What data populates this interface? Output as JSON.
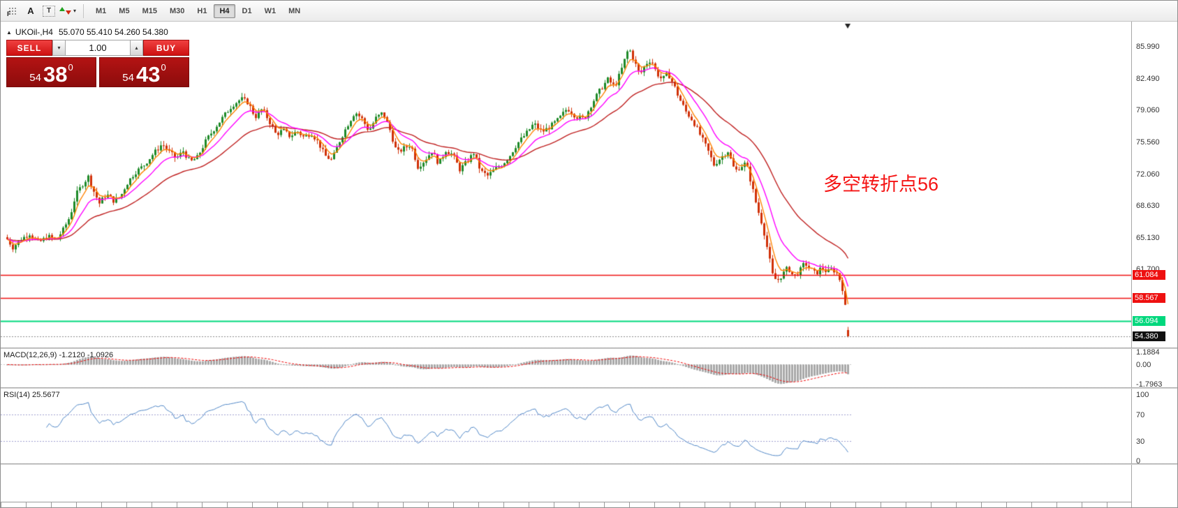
{
  "colors": {
    "up_candle": "#1e8a28",
    "down_candle": "#d03008",
    "ma_fast": "#ff8400",
    "ma_mid": "#ff00ff",
    "ma_slow": "#bf1f1f",
    "macd_hist": "#a8a8a8",
    "macd_signal": "#ee0000",
    "rsi_line": "#4f86c6",
    "rsi_level": "#9f9fd0",
    "level_red": "#ee1010",
    "level_green": "#00d87d",
    "current_badge": "#111111",
    "current_line": "#8a8a8a",
    "annotation_red": "#f51414"
  },
  "toolbar": {
    "icon_f": "F",
    "icon_a": "A",
    "icon_t": "T",
    "dropdown_caret": "▾",
    "timeframes": [
      "M1",
      "M5",
      "M15",
      "M30",
      "H1",
      "H4",
      "D1",
      "W1",
      "MN"
    ],
    "active_timeframe": "H4"
  },
  "header": {
    "collapse": "▲",
    "symbol": "UKOil-,H4",
    "ohlc": "55.070 55.410 54.260 54.380"
  },
  "trade_panel": {
    "sell_label": "SELL",
    "buy_label": "BUY",
    "volume": "1.00",
    "stepper_down": "▾",
    "stepper_up": "▴",
    "bid_small": "54",
    "bid_big": "38",
    "bid_sup": "0",
    "ask_small": "54",
    "ask_big": "43",
    "ask_sup": "0"
  },
  "annotation": {
    "text": "多空转折点56"
  },
  "price_axis": {
    "labels": [
      {
        "text": "85.990",
        "price": 85.99
      },
      {
        "text": "82.490",
        "price": 82.49
      },
      {
        "text": "79.060",
        "price": 79.06
      },
      {
        "text": "75.560",
        "price": 75.56
      },
      {
        "text": "72.060",
        "price": 72.06
      },
      {
        "text": "68.630",
        "price": 68.63
      },
      {
        "text": "65.130",
        "price": 65.13
      },
      {
        "text": "61.700",
        "price": 61.7
      }
    ]
  },
  "levels": [
    {
      "text": "61.084",
      "price": 61.084,
      "style": "red"
    },
    {
      "text": "58.567",
      "price": 58.567,
      "style": "red"
    },
    {
      "text": "56.094",
      "price": 56.094,
      "style": "green"
    },
    {
      "text": "54.380",
      "price": 54.38,
      "style": "current"
    }
  ],
  "macd_panel": {
    "label": "MACD(12,26,9) -1.2120 -1.0926",
    "axis": [
      {
        "text": "1.1884",
        "value": 1.1884
      },
      {
        "text": "0.00",
        "value": 0
      },
      {
        "text": "-1.7963",
        "value": -1.7963
      }
    ]
  },
  "rsi_panel": {
    "label": "RSI(14) 25.5677",
    "axis": [
      {
        "text": "100",
        "value": 100
      },
      {
        "text": "70",
        "value": 70
      },
      {
        "text": "30",
        "value": 30
      },
      {
        "text": "0",
        "value": 0
      }
    ],
    "levels": [
      70,
      30
    ]
  },
  "chart_data": {
    "type": "candlestick",
    "symbol": "UKOil-",
    "timeframe": "H4",
    "last_bar": {
      "open": 55.07,
      "high": 55.41,
      "low": 54.26,
      "close": 54.38
    },
    "current_price": 54.38,
    "price_range_visible": [
      53.2,
      88.7
    ],
    "axis_ticks": [
      85.99,
      82.49,
      79.06,
      75.56,
      72.06,
      68.63,
      65.13,
      61.7
    ],
    "horizontal_levels": [
      61.084,
      58.567,
      56.094
    ],
    "moving_averages": [
      {
        "name": "fast",
        "period": 5,
        "color": "#ff8400"
      },
      {
        "name": "medium",
        "period": 13,
        "color": "#ff00ff"
      },
      {
        "name": "slow",
        "period": 34,
        "color": "#bf1f1f"
      }
    ],
    "macd": {
      "fast": 12,
      "slow": 26,
      "signal": 9,
      "main_value": -1.212,
      "signal_value": -1.0926,
      "axis_max": 1.1884,
      "axis_min": -1.7963
    },
    "rsi": {
      "period": 14,
      "value": 25.5677,
      "levels": [
        70,
        30
      ],
      "axis_range": [
        0,
        100
      ]
    },
    "price_path": [
      [
        8,
        65.2
      ],
      [
        18,
        64.1
      ],
      [
        30,
        65.0
      ],
      [
        42,
        65.6
      ],
      [
        55,
        64.6
      ],
      [
        68,
        65.3
      ],
      [
        80,
        64.9
      ],
      [
        90,
        66.0
      ],
      [
        100,
        67.5
      ],
      [
        108,
        69.8
      ],
      [
        118,
        71.0
      ],
      [
        126,
        71.8
      ],
      [
        134,
        70.2
      ],
      [
        142,
        68.9
      ],
      [
        152,
        69.9
      ],
      [
        162,
        69.2
      ],
      [
        172,
        69.6
      ],
      [
        180,
        70.9
      ],
      [
        192,
        72.2
      ],
      [
        205,
        73.0
      ],
      [
        218,
        74.2
      ],
      [
        232,
        75.4
      ],
      [
        242,
        74.5
      ],
      [
        252,
        73.8
      ],
      [
        262,
        74.6
      ],
      [
        272,
        73.4
      ],
      [
        282,
        73.9
      ],
      [
        295,
        75.8
      ],
      [
        308,
        77.2
      ],
      [
        320,
        78.4
      ],
      [
        332,
        79.6
      ],
      [
        345,
        80.3
      ],
      [
        355,
        79.9
      ],
      [
        365,
        78.3
      ],
      [
        375,
        79.2
      ],
      [
        385,
        77.9
      ],
      [
        395,
        76.4
      ],
      [
        405,
        76.9
      ],
      [
        415,
        76.2
      ],
      [
        425,
        76.8
      ],
      [
        435,
        76.1
      ],
      [
        445,
        76.6
      ],
      [
        455,
        75.6
      ],
      [
        465,
        74.1
      ],
      [
        475,
        73.6
      ],
      [
        487,
        75.9
      ],
      [
        497,
        77.4
      ],
      [
        508,
        78.9
      ],
      [
        518,
        78.1
      ],
      [
        528,
        76.8
      ],
      [
        538,
        78.2
      ],
      [
        548,
        78.8
      ],
      [
        558,
        76.9
      ],
      [
        568,
        74.4
      ],
      [
        578,
        74.9
      ],
      [
        588,
        75.3
      ],
      [
        598,
        72.9
      ],
      [
        608,
        73.6
      ],
      [
        618,
        74.6
      ],
      [
        628,
        73.2
      ],
      [
        638,
        74.7
      ],
      [
        648,
        74.2
      ],
      [
        658,
        72.6
      ],
      [
        668,
        73.4
      ],
      [
        678,
        74.4
      ],
      [
        688,
        72.4
      ],
      [
        698,
        71.9
      ],
      [
        708,
        72.6
      ],
      [
        718,
        73.1
      ],
      [
        728,
        73.9
      ],
      [
        740,
        75.4
      ],
      [
        752,
        76.4
      ],
      [
        764,
        77.6
      ],
      [
        776,
        76.7
      ],
      [
        788,
        77.3
      ],
      [
        800,
        78.1
      ],
      [
        812,
        79.3
      ],
      [
        824,
        78.4
      ],
      [
        836,
        78.1
      ],
      [
        848,
        79.9
      ],
      [
        860,
        81.4
      ],
      [
        870,
        82.4
      ],
      [
        880,
        81.6
      ],
      [
        890,
        83.6
      ],
      [
        900,
        85.9
      ],
      [
        908,
        84.4
      ],
      [
        916,
        82.9
      ],
      [
        924,
        84.1
      ],
      [
        932,
        84.6
      ],
      [
        940,
        83.1
      ],
      [
        948,
        82.4
      ],
      [
        956,
        83.1
      ],
      [
        964,
        81.9
      ],
      [
        972,
        80.4
      ],
      [
        982,
        78.9
      ],
      [
        992,
        77.9
      ],
      [
        1002,
        76.4
      ],
      [
        1012,
        74.9
      ],
      [
        1022,
        73.1
      ],
      [
        1032,
        73.9
      ],
      [
        1042,
        74.6
      ],
      [
        1052,
        72.4
      ],
      [
        1060,
        72.9
      ],
      [
        1068,
        73.3
      ],
      [
        1076,
        70.9
      ],
      [
        1084,
        68.4
      ],
      [
        1092,
        66.4
      ],
      [
        1100,
        63.4
      ],
      [
        1106,
        61.1
      ],
      [
        1112,
        60.4
      ],
      [
        1120,
        61.1
      ],
      [
        1128,
        61.9
      ],
      [
        1136,
        60.9
      ],
      [
        1144,
        61.4
      ],
      [
        1152,
        62.4
      ],
      [
        1160,
        61.7
      ],
      [
        1168,
        61.2
      ],
      [
        1176,
        61.9
      ],
      [
        1184,
        61.4
      ],
      [
        1192,
        61.7
      ],
      [
        1200,
        61.1
      ],
      [
        1206,
        59.6
      ],
      [
        1211,
        57.1
      ],
      [
        1215,
        54.4
      ]
    ]
  }
}
